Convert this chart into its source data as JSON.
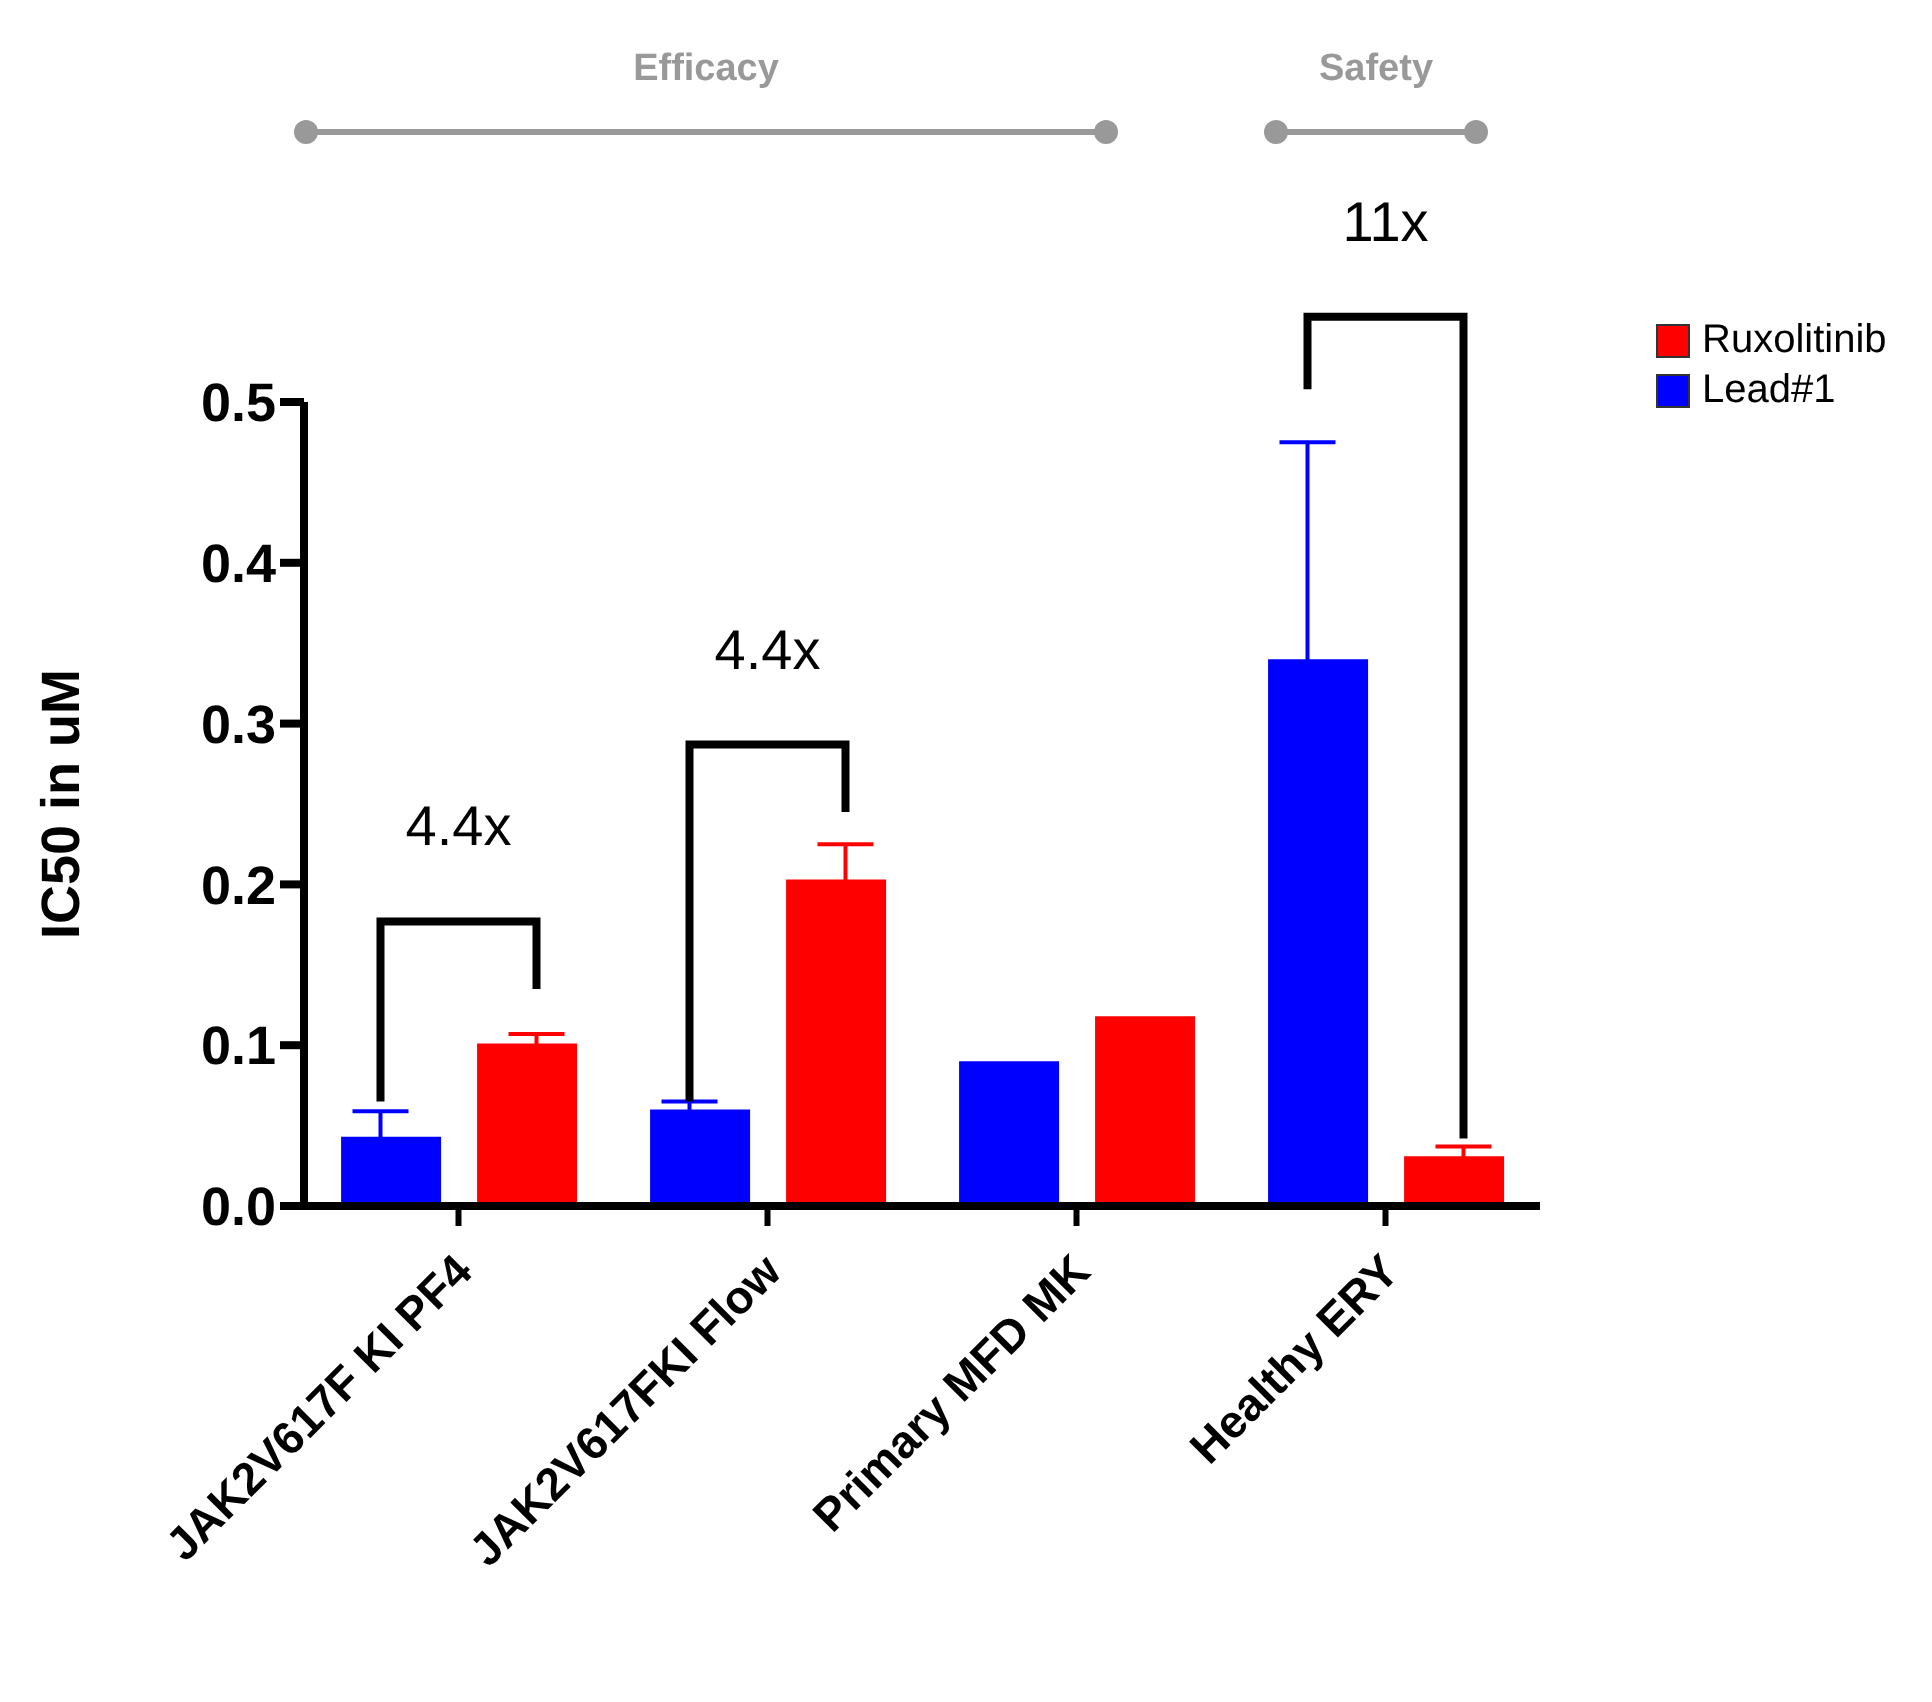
{
  "chart_data": {
    "type": "bar",
    "ylabel": "IC50 in uM",
    "categories": [
      "JAK2V617F KI PF4",
      "JAK2V617FKI Flow",
      "Primary MFD MK",
      "Healthy ERY"
    ],
    "series": [
      {
        "name": "Lead#1",
        "color": "#0000ff",
        "values": [
          0.043,
          0.06,
          0.09,
          0.34
        ],
        "errors": [
          0.016,
          0.005,
          null,
          0.135
        ]
      },
      {
        "name": "Ruxolitinib",
        "color": "#ff0000",
        "values": [
          0.101,
          0.203,
          0.118,
          0.031
        ],
        "errors": [
          0.006,
          0.022,
          null,
          0.006
        ]
      }
    ],
    "ylim": [
      0,
      0.5
    ],
    "yticks": [
      {
        "value": 0,
        "label": "0.0"
      },
      0.1,
      0.2,
      0.3,
      0.4,
      0.5
    ],
    "grid": false,
    "legend": "top right",
    "annotations": [
      "Efficacy",
      "Safety",
      "4.4x",
      "4.4x",
      "11x"
    ]
  }
}
